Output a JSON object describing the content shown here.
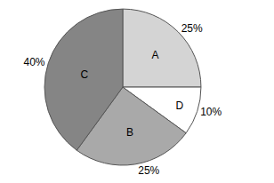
{
  "chart_data": {
    "type": "pie",
    "categories": [
      "A",
      "D",
      "B",
      "C"
    ],
    "values": [
      25,
      10,
      25,
      40
    ],
    "value_labels": [
      "25%",
      "10%",
      "25%",
      "40%"
    ],
    "colors": [
      "#d4d4d4",
      "#ffffff",
      "#a9a9a9",
      "#858585"
    ],
    "data_labels": true
  }
}
